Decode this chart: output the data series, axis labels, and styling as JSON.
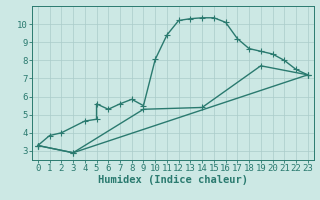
{
  "title": "",
  "xlabel": "Humidex (Indice chaleur)",
  "xlim": [
    -0.5,
    23.5
  ],
  "ylim": [
    2.5,
    11.0
  ],
  "xticks": [
    0,
    1,
    2,
    3,
    4,
    5,
    6,
    7,
    8,
    9,
    10,
    11,
    12,
    13,
    14,
    15,
    16,
    17,
    18,
    19,
    20,
    21,
    22,
    23
  ],
  "yticks": [
    3,
    4,
    5,
    6,
    7,
    8,
    9,
    10
  ],
  "bg_color": "#cce8e4",
  "grid_color": "#aaccca",
  "line_color": "#2a7a6f",
  "line1_x": [
    0,
    1,
    2,
    4,
    5,
    5,
    6,
    7,
    8,
    9,
    10,
    11,
    12,
    13,
    14,
    15,
    16,
    17,
    18,
    19,
    20,
    21,
    22,
    23
  ],
  "line1_y": [
    3.3,
    3.85,
    4.0,
    4.65,
    4.75,
    5.6,
    5.3,
    5.6,
    5.85,
    5.5,
    8.05,
    9.4,
    10.2,
    10.3,
    10.35,
    10.35,
    10.1,
    9.2,
    8.65,
    8.5,
    8.35,
    8.0,
    7.5,
    7.2
  ],
  "line2_x": [
    0,
    3,
    23
  ],
  "line2_y": [
    3.3,
    2.9,
    7.2
  ],
  "line3_x": [
    0,
    3,
    9,
    14,
    19,
    23
  ],
  "line3_y": [
    3.3,
    2.9,
    5.3,
    5.4,
    7.7,
    7.2
  ],
  "marker_size": 4,
  "line_width": 1.0,
  "tick_fontsize": 6.5,
  "xlabel_fontsize": 7.5
}
